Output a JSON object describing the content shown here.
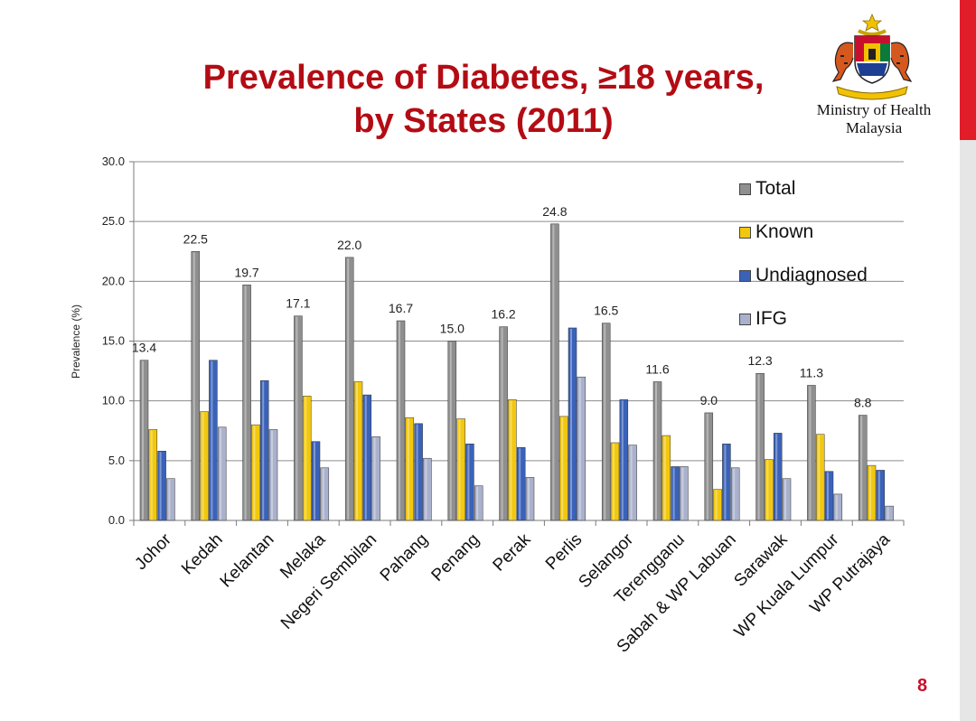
{
  "slide": {
    "title_line1": "Prevalence of Diabetes, ≥18 years,",
    "title_line2": "by States (2011)",
    "org_line1": "Ministry of Health",
    "org_line2": "Malaysia",
    "page_number": "8"
  },
  "colors": {
    "title": "#b30c14",
    "accent": "#e11d2a",
    "Total": "#8f8f8f",
    "Known": "#f2c80f",
    "Undiagnosed": "#3a62b9",
    "IFG": "#a9b1cc"
  },
  "icons": {
    "crest": "coat-of-arms-icon"
  },
  "chart_data": {
    "type": "bar",
    "title": "",
    "xlabel": "",
    "ylabel": "Prevalence (%)",
    "ylim": [
      0,
      30
    ],
    "yticks": [
      "0.0",
      "5.0",
      "10.0",
      "15.0",
      "20.0",
      "25.0",
      "30.0"
    ],
    "grid": true,
    "legend": "top-right",
    "categories": [
      "Johor",
      "Kedah",
      "Kelantan",
      "Melaka",
      "Negeri Sembilan",
      "Pahang",
      "Penang",
      "Perak",
      "Perlis",
      "Selangor",
      "Terengganu",
      "Sabah & WP Labuan",
      "Sarawak",
      "WP Kuala Lumpur",
      "WP Putrajaya"
    ],
    "series": [
      {
        "name": "Total",
        "values": [
          13.4,
          22.5,
          19.7,
          17.1,
          22.0,
          16.7,
          15.0,
          16.2,
          24.8,
          16.5,
          11.6,
          9.0,
          12.3,
          11.3,
          8.8
        ]
      },
      {
        "name": "Known",
        "values": [
          7.6,
          9.1,
          8.0,
          10.4,
          11.6,
          8.6,
          8.5,
          10.1,
          8.7,
          6.5,
          7.1,
          2.6,
          5.1,
          7.2,
          4.6
        ]
      },
      {
        "name": "Undiagnosed",
        "values": [
          5.8,
          13.4,
          11.7,
          6.6,
          10.5,
          8.1,
          6.4,
          6.1,
          16.1,
          10.1,
          4.5,
          6.4,
          7.3,
          4.1,
          4.2
        ]
      },
      {
        "name": "IFG",
        "values": [
          3.5,
          7.8,
          7.6,
          4.4,
          7.0,
          5.2,
          2.9,
          3.6,
          12.0,
          6.3,
          4.5,
          4.4,
          3.5,
          2.2,
          1.2
        ]
      }
    ],
    "data_labels": {
      "series": "Total",
      "values": [
        "13.4",
        "22.5",
        "19.7",
        "17.1",
        "22.0",
        "16.7",
        "15.0",
        "16.2",
        "24.8",
        "16.5",
        "11.6",
        "9.0",
        "12.3",
        "11.3",
        "8.8"
      ]
    }
  }
}
